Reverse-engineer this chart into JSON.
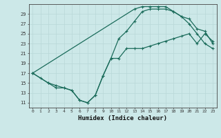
{
  "title": "",
  "xlabel": "Humidex (Indice chaleur)",
  "bg_color": "#cce8e8",
  "line_color": "#1a6b5a",
  "grid_color": "#b8d8d8",
  "xlim": [
    -0.5,
    23.5
  ],
  "ylim": [
    10.0,
    31.0
  ],
  "xticks": [
    0,
    1,
    2,
    3,
    4,
    5,
    6,
    7,
    8,
    9,
    10,
    11,
    12,
    13,
    14,
    15,
    16,
    17,
    18,
    19,
    20,
    21,
    22,
    23
  ],
  "yticks": [
    11,
    13,
    15,
    17,
    19,
    21,
    23,
    25,
    27,
    29
  ],
  "line1_x": [
    0,
    1,
    2,
    3,
    4,
    5,
    6,
    7,
    8,
    9,
    10,
    11,
    12,
    13,
    14,
    15,
    16,
    17,
    18,
    19,
    20,
    21,
    22,
    23
  ],
  "line1_y": [
    17,
    16,
    15,
    14,
    14,
    13.5,
    11.5,
    11,
    12.5,
    16.5,
    20,
    24,
    25.5,
    27.5,
    29.5,
    30,
    30,
    30,
    29.5,
    28.5,
    27,
    25,
    23,
    22
  ],
  "line2_x": [
    0,
    2,
    3,
    4,
    5,
    6,
    7,
    8,
    9,
    10,
    11,
    12,
    13,
    14,
    15,
    16,
    17,
    18,
    19,
    20,
    21,
    22,
    23
  ],
  "line2_y": [
    17,
    15,
    14.5,
    14,
    13.5,
    11.5,
    11,
    12.5,
    16.5,
    20,
    20,
    22,
    22,
    22,
    22.5,
    23,
    23.5,
    24,
    24.5,
    25,
    23,
    25,
    23.5
  ],
  "line3_x": [
    0,
    13,
    14,
    15,
    16,
    17,
    18,
    19,
    20,
    21,
    22,
    23
  ],
  "line3_y": [
    17,
    30,
    30.5,
    30.5,
    30.5,
    30.5,
    29.5,
    28.5,
    28,
    26,
    25.5,
    23
  ]
}
